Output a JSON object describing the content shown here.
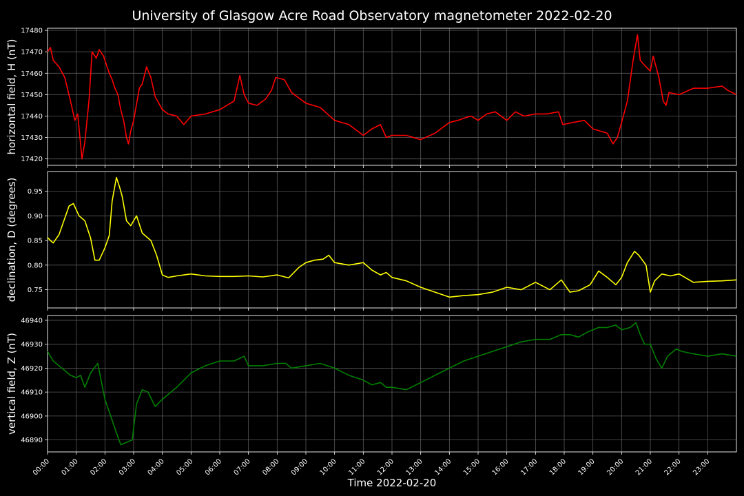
{
  "chart_data": {
    "type": "line",
    "title": "University of Glasgow Acre Road Observatory magnetometer 2022-02-20",
    "xlabel": "Time 2022-02-20",
    "x_unit": "hours",
    "xlim": [
      0,
      24
    ],
    "x_tick_labels": [
      "00:00",
      "01:00",
      "02:00",
      "03:00",
      "04:00",
      "05:00",
      "06:00",
      "07:00",
      "08:00",
      "09:00",
      "10:00",
      "11:00",
      "12:00",
      "13:00",
      "14:00",
      "15:00",
      "16:00",
      "17:00",
      "18:00",
      "19:00",
      "20:00",
      "21:00",
      "22:00",
      "23:00"
    ],
    "grid": true,
    "background": "#000000",
    "panels": [
      {
        "ylabel": "horizontal field, H (nT)",
        "color": "#ff0000",
        "ylim": [
          17417,
          17481
        ],
        "yticks": [
          17420,
          17430,
          17440,
          17450,
          17460,
          17470,
          17480
        ],
        "series": {
          "x": [
            0,
            0.1,
            0.2,
            0.4,
            0.6,
            0.8,
            0.95,
            1.05,
            1.2,
            1.3,
            1.45,
            1.55,
            1.7,
            1.8,
            1.95,
            2.05,
            2.15,
            2.25,
            2.35,
            2.45,
            2.55,
            2.65,
            2.75,
            2.82,
            2.9,
            3.0,
            3.2,
            3.3,
            3.45,
            3.6,
            3.75,
            4.0,
            4.2,
            4.5,
            4.75,
            5.0,
            5.5,
            6.0,
            6.5,
            6.7,
            6.85,
            7.0,
            7.3,
            7.6,
            7.8,
            7.95,
            8.25,
            8.5,
            9.0,
            9.5,
            10.0,
            10.5,
            11.0,
            11.3,
            11.6,
            11.8,
            12.0,
            12.5,
            13.0,
            13.5,
            14.0,
            14.3,
            14.5,
            14.75,
            15.0,
            15.3,
            15.6,
            16.0,
            16.3,
            16.6,
            17.0,
            17.4,
            17.8,
            17.95,
            18.3,
            18.7,
            19.0,
            19.5,
            19.7,
            19.85,
            20.0,
            20.2,
            20.4,
            20.55,
            20.65,
            20.85,
            21.0,
            21.1,
            21.3,
            21.45,
            21.55,
            21.65,
            22.0,
            22.5,
            23.0,
            23.5,
            23.7,
            24.0
          ],
          "values": [
            17470,
            17472,
            17466,
            17463,
            17458,
            17447,
            17438,
            17441,
            17420,
            17428,
            17448,
            17470,
            17467,
            17471,
            17468,
            17464,
            17460,
            17457,
            17453,
            17450,
            17443,
            17438,
            17430,
            17427,
            17433,
            17438,
            17453,
            17455,
            17463,
            17458,
            17449,
            17443,
            17441,
            17440,
            17436,
            17440,
            17441,
            17443,
            17447,
            17459,
            17450,
            17446,
            17445,
            17448,
            17452,
            17458,
            17457,
            17451,
            17446,
            17444,
            17438,
            17436,
            17431,
            17434,
            17436,
            17430,
            17431,
            17431,
            17429,
            17432,
            17437,
            17438,
            17439,
            17440,
            17438,
            17441,
            17442,
            17438,
            17442,
            17440,
            17441,
            17441,
            17442,
            17436,
            17437,
            17438,
            17434,
            17432,
            17427,
            17430,
            17437,
            17447,
            17466,
            17478,
            17466,
            17463,
            17461,
            17468,
            17458,
            17447,
            17445,
            17451,
            17450,
            17453,
            17453,
            17454,
            17452,
            17450
          ]
        }
      },
      {
        "ylabel": "declination, D (degrees)",
        "color": "#ffff00",
        "ylim": [
          0.713,
          0.99
        ],
        "yticks": [
          0.75,
          0.8,
          0.85,
          0.9,
          0.95
        ],
        "series": {
          "x": [
            0,
            0.1,
            0.2,
            0.4,
            0.6,
            0.75,
            0.9,
            1.1,
            1.3,
            1.5,
            1.65,
            1.8,
            2.0,
            2.15,
            2.25,
            2.4,
            2.5,
            2.6,
            2.75,
            2.9,
            3.1,
            3.3,
            3.6,
            3.8,
            4.0,
            4.2,
            4.5,
            5.0,
            5.5,
            6.0,
            6.5,
            7.0,
            7.5,
            8.0,
            8.4,
            8.75,
            9.0,
            9.3,
            9.6,
            9.8,
            10.0,
            10.5,
            11.0,
            11.3,
            11.6,
            11.8,
            12.0,
            12.5,
            13.0,
            13.5,
            14.0,
            14.5,
            15.0,
            15.5,
            16.0,
            16.5,
            17.0,
            17.5,
            17.9,
            18.2,
            18.5,
            18.9,
            19.2,
            19.5,
            19.8,
            20.0,
            20.2,
            20.45,
            20.6,
            20.85,
            21.0,
            21.15,
            21.4,
            21.7,
            22.0,
            22.5,
            23.0,
            23.5,
            24.0
          ],
          "values": [
            0.856,
            0.85,
            0.845,
            0.862,
            0.895,
            0.92,
            0.925,
            0.9,
            0.89,
            0.855,
            0.81,
            0.81,
            0.835,
            0.86,
            0.93,
            0.978,
            0.96,
            0.94,
            0.89,
            0.88,
            0.9,
            0.865,
            0.85,
            0.82,
            0.78,
            0.775,
            0.778,
            0.782,
            0.778,
            0.777,
            0.777,
            0.778,
            0.776,
            0.78,
            0.774,
            0.795,
            0.805,
            0.81,
            0.812,
            0.82,
            0.805,
            0.8,
            0.805,
            0.79,
            0.78,
            0.785,
            0.775,
            0.768,
            0.755,
            0.745,
            0.735,
            0.738,
            0.74,
            0.745,
            0.755,
            0.75,
            0.765,
            0.75,
            0.77,
            0.745,
            0.748,
            0.76,
            0.788,
            0.775,
            0.76,
            0.775,
            0.805,
            0.828,
            0.82,
            0.8,
            0.745,
            0.768,
            0.782,
            0.778,
            0.782,
            0.765,
            0.767,
            0.768,
            0.77
          ]
        }
      },
      {
        "ylabel": "vertical field, Z (nT)",
        "color": "#008000",
        "ylim": [
          46885,
          46942
        ],
        "yticks": [
          46890,
          46900,
          46910,
          46920,
          46930,
          46940
        ],
        "series": {
          "x": [
            0,
            0.2,
            0.5,
            0.8,
            1.0,
            1.15,
            1.3,
            1.5,
            1.75,
            2.0,
            2.2,
            2.4,
            2.55,
            2.75,
            2.95,
            3.1,
            3.3,
            3.5,
            3.75,
            4.0,
            4.5,
            5.0,
            5.5,
            6.0,
            6.5,
            6.85,
            7.0,
            7.5,
            8.0,
            8.3,
            8.5,
            9.0,
            9.5,
            10.0,
            10.5,
            11.0,
            11.3,
            11.6,
            11.8,
            12.0,
            12.5,
            13.0,
            13.5,
            14.0,
            14.5,
            15.0,
            15.5,
            16.0,
            16.5,
            17.0,
            17.5,
            17.9,
            18.2,
            18.5,
            18.8,
            19.2,
            19.5,
            19.8,
            20.0,
            20.3,
            20.5,
            20.65,
            20.8,
            21.0,
            21.2,
            21.4,
            21.6,
            21.9,
            22.1,
            22.5,
            23.0,
            23.5,
            24.0
          ],
          "values": [
            46927,
            46923,
            46920,
            46917,
            46916,
            46917,
            46912,
            46918,
            46922,
            46907,
            46900,
            46893,
            46888,
            46889,
            46890,
            46905,
            46911,
            46910,
            46904,
            46907,
            46912,
            46918,
            46921,
            46923,
            46923,
            46925,
            46921,
            46921,
            46922,
            46922,
            46920,
            46921,
            46922,
            46920,
            46917,
            46915,
            46913,
            46914,
            46912,
            46912,
            46911,
            46914,
            46917,
            46920,
            46923,
            46925,
            46927,
            46929,
            46931,
            46932,
            46932,
            46934,
            46934,
            46933,
            46935,
            46937,
            46937,
            46938,
            46936,
            46937,
            46939,
            46934,
            46930,
            46930,
            46924,
            46920,
            46925,
            46928,
            46927,
            46926,
            46925,
            46926,
            46925
          ]
        }
      }
    ]
  }
}
